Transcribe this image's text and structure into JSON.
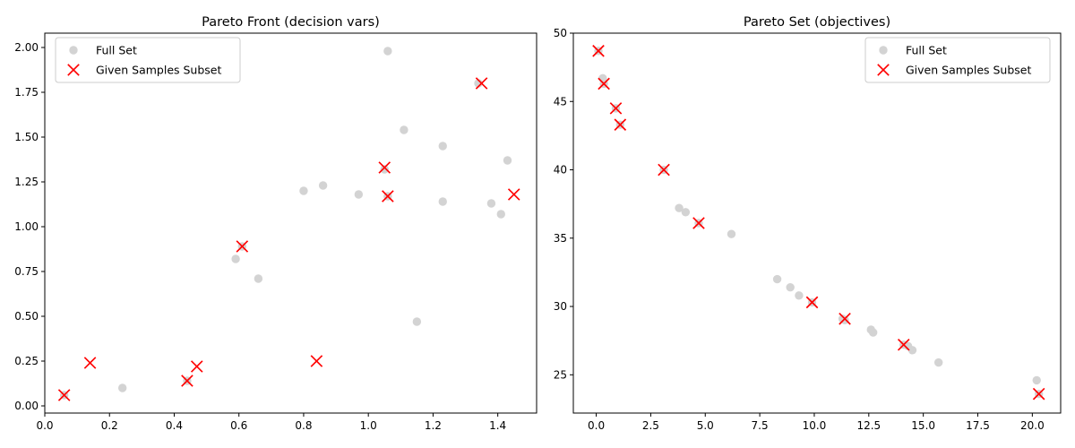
{
  "chart_data": [
    {
      "type": "scatter",
      "title": "Pareto Front (decision vars)",
      "xlabel": "",
      "ylabel": "",
      "xlim": [
        0.0,
        1.52
      ],
      "ylim": [
        -0.04,
        2.08
      ],
      "xticks": [
        "0.0",
        "0.2",
        "0.4",
        "0.6",
        "0.8",
        "1.0",
        "1.2",
        "1.4"
      ],
      "yticks": [
        "0.00",
        "0.25",
        "0.50",
        "0.75",
        "1.00",
        "1.25",
        "1.50",
        "1.75",
        "2.00"
      ],
      "legend_position": "top-left",
      "series": [
        {
          "name": "Full Set",
          "marker": "circle",
          "color": "#d3d3d3",
          "points": [
            [
              0.06,
              0.06
            ],
            [
              0.24,
              0.1
            ],
            [
              0.44,
              0.14
            ],
            [
              0.59,
              0.82
            ],
            [
              0.61,
              0.89
            ],
            [
              0.66,
              0.71
            ],
            [
              0.8,
              1.2
            ],
            [
              0.86,
              1.23
            ],
            [
              0.97,
              1.18
            ],
            [
              1.05,
              1.32
            ],
            [
              1.06,
              1.17
            ],
            [
              1.06,
              1.98
            ],
            [
              1.11,
              1.54
            ],
            [
              1.15,
              0.47
            ],
            [
              1.23,
              1.45
            ],
            [
              1.23,
              1.14
            ],
            [
              1.34,
              1.8
            ],
            [
              1.38,
              1.13
            ],
            [
              1.41,
              1.07
            ],
            [
              1.43,
              1.37
            ]
          ]
        },
        {
          "name": "Given Samples Subset",
          "marker": "x",
          "color": "#ff0000",
          "points": [
            [
              0.06,
              0.06
            ],
            [
              0.14,
              0.24
            ],
            [
              0.44,
              0.14
            ],
            [
              0.47,
              0.22
            ],
            [
              0.61,
              0.89
            ],
            [
              0.84,
              0.25
            ],
            [
              1.05,
              1.33
            ],
            [
              1.06,
              1.17
            ],
            [
              1.35,
              1.8
            ],
            [
              1.45,
              1.18
            ]
          ]
        }
      ]
    },
    {
      "type": "scatter",
      "title": "Pareto Set (objectives)",
      "xlabel": "",
      "ylabel": "",
      "xlim": [
        -1.05,
        21.3
      ],
      "ylim": [
        22.2,
        50.0
      ],
      "xticks": [
        "0.0",
        "2.5",
        "5.0",
        "7.5",
        "10.0",
        "12.5",
        "15.0",
        "17.5",
        "20.0"
      ],
      "yticks": [
        "25",
        "30",
        "35",
        "40",
        "45",
        "50"
      ],
      "legend_position": "top-right",
      "series": [
        {
          "name": "Full Set",
          "marker": "circle",
          "color": "#d3d3d3",
          "points": [
            [
              0.1,
              48.7
            ],
            [
              0.3,
              46.7
            ],
            [
              0.35,
              46.3
            ],
            [
              0.9,
              44.5
            ],
            [
              1.1,
              43.3
            ],
            [
              3.1,
              40.0
            ],
            [
              3.8,
              37.2
            ],
            [
              4.1,
              36.9
            ],
            [
              4.7,
              36.1
            ],
            [
              6.2,
              35.3
            ],
            [
              8.3,
              32.0
            ],
            [
              8.9,
              31.4
            ],
            [
              9.3,
              30.8
            ],
            [
              9.9,
              30.3
            ],
            [
              11.3,
              29.1
            ],
            [
              11.4,
              29.0
            ],
            [
              12.6,
              28.3
            ],
            [
              12.7,
              28.1
            ],
            [
              14.1,
              27.2
            ],
            [
              14.3,
              27.1
            ],
            [
              14.5,
              26.8
            ],
            [
              15.7,
              25.9
            ],
            [
              20.2,
              24.6
            ],
            [
              20.3,
              23.6
            ]
          ]
        },
        {
          "name": "Given Samples Subset",
          "marker": "x",
          "color": "#ff0000",
          "points": [
            [
              0.1,
              48.7
            ],
            [
              0.35,
              46.3
            ],
            [
              0.9,
              44.5
            ],
            [
              1.1,
              43.3
            ],
            [
              3.1,
              40.0
            ],
            [
              4.7,
              36.1
            ],
            [
              9.9,
              30.3
            ],
            [
              11.4,
              29.1
            ],
            [
              14.1,
              27.2
            ],
            [
              20.3,
              23.6
            ]
          ]
        }
      ]
    }
  ]
}
